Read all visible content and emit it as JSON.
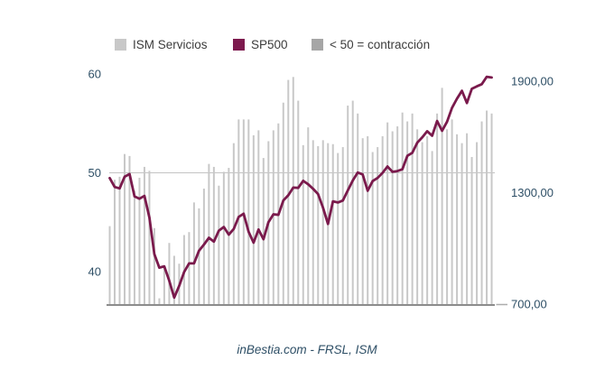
{
  "legend": {
    "items": [
      {
        "label": "ISM Servicios",
        "swatch_color": "#c8c8c8"
      },
      {
        "label": "SP500",
        "swatch_color": "#7d1a4e"
      },
      {
        "label": "< 50 = contracción",
        "swatch_color": "#a6a6a6"
      }
    ]
  },
  "caption": "inBestia.com - FRSL, ISM",
  "colors": {
    "bar": "#c8c8c8",
    "line": "#7a1a4c",
    "gridline": "#c3c3c3",
    "baseline": "#8c8c8c",
    "axis_tick": "#adadad",
    "axis_label": "#2e4f66",
    "background": "#ffffff"
  },
  "chart_data": {
    "type": "mixed",
    "points": 78,
    "series": [
      {
        "name": "ISM Servicios",
        "type": "bar",
        "axis": "left",
        "color": "#c8c8c8",
        "values": [
          44.6,
          49.3,
          49.6,
          51.9,
          51.7,
          48.2,
          49.5,
          50.6,
          50.2,
          44.4,
          37.3,
          40.6,
          42.9,
          41.6,
          40.8,
          43.7,
          44.0,
          47.0,
          46.4,
          48.4,
          50.9,
          50.6,
          48.7,
          50.1,
          50.5,
          53.0,
          55.4,
          55.4,
          55.4,
          53.8,
          54.3,
          51.5,
          53.2,
          54.3,
          55.0,
          57.1,
          59.4,
          59.7,
          57.3,
          52.8,
          54.6,
          53.3,
          52.7,
          53.3,
          53.0,
          52.9,
          52.0,
          52.6,
          56.8,
          57.3,
          56.0,
          53.5,
          53.7,
          52.1,
          52.6,
          53.7,
          55.1,
          54.2,
          54.7,
          56.1,
          55.2,
          56.0,
          54.4,
          53.1,
          53.7,
          52.2,
          56.0,
          58.6,
          54.4,
          55.4,
          53.9,
          53.0,
          54.0,
          51.6,
          53.1,
          55.2,
          56.3,
          56.0
        ]
      },
      {
        "name": "SP500",
        "type": "line",
        "axis": "right",
        "color": "#7a1a4c",
        "values": [
          1378.6,
          1330.6,
          1322.7,
          1385.6,
          1400.4,
          1280.0,
          1267.4,
          1282.8,
          1166.4,
          968.8,
          896.2,
          903.3,
          825.9,
          735.1,
          797.9,
          872.8,
          919.1,
          919.3,
          987.5,
          1020.6,
          1057.1,
          1036.2,
          1095.6,
          1115.1,
          1073.9,
          1104.5,
          1169.4,
          1186.7,
          1089.4,
          1030.7,
          1101.6,
          1049.3,
          1141.2,
          1183.3,
          1180.6,
          1257.6,
          1286.1,
          1327.2,
          1325.8,
          1363.6,
          1345.2,
          1320.6,
          1292.3,
          1218.9,
          1131.4,
          1253.3,
          1247.0,
          1257.6,
          1312.4,
          1365.7,
          1408.5,
          1397.9,
          1310.3,
          1362.2,
          1379.3,
          1406.6,
          1440.7,
          1412.2,
          1416.2,
          1426.2,
          1498.1,
          1514.7,
          1569.2,
          1597.6,
          1630.7,
          1606.3,
          1685.7,
          1633.0,
          1681.6,
          1756.5,
          1805.8,
          1848.4,
          1782.6,
          1859.5,
          1872.3,
          1884.0,
          1923.6,
          1920.0
        ]
      }
    ],
    "left_axis": {
      "tick_values": [
        60,
        50,
        40
      ],
      "tick_labels": [
        "60",
        "50",
        "40"
      ]
    },
    "right_axis": {
      "tick_values": [
        1900,
        1300,
        700
      ],
      "tick_labels": [
        "1900,00",
        "1300,00",
        "700,00"
      ]
    },
    "reference_line": {
      "axis": "left",
      "value": 50,
      "meaning": "< 50 = contracción"
    },
    "x_axis": {
      "labels_visible": false
    },
    "grid": "single horizontal reference line at left-axis value 50",
    "legend_position": "top"
  }
}
